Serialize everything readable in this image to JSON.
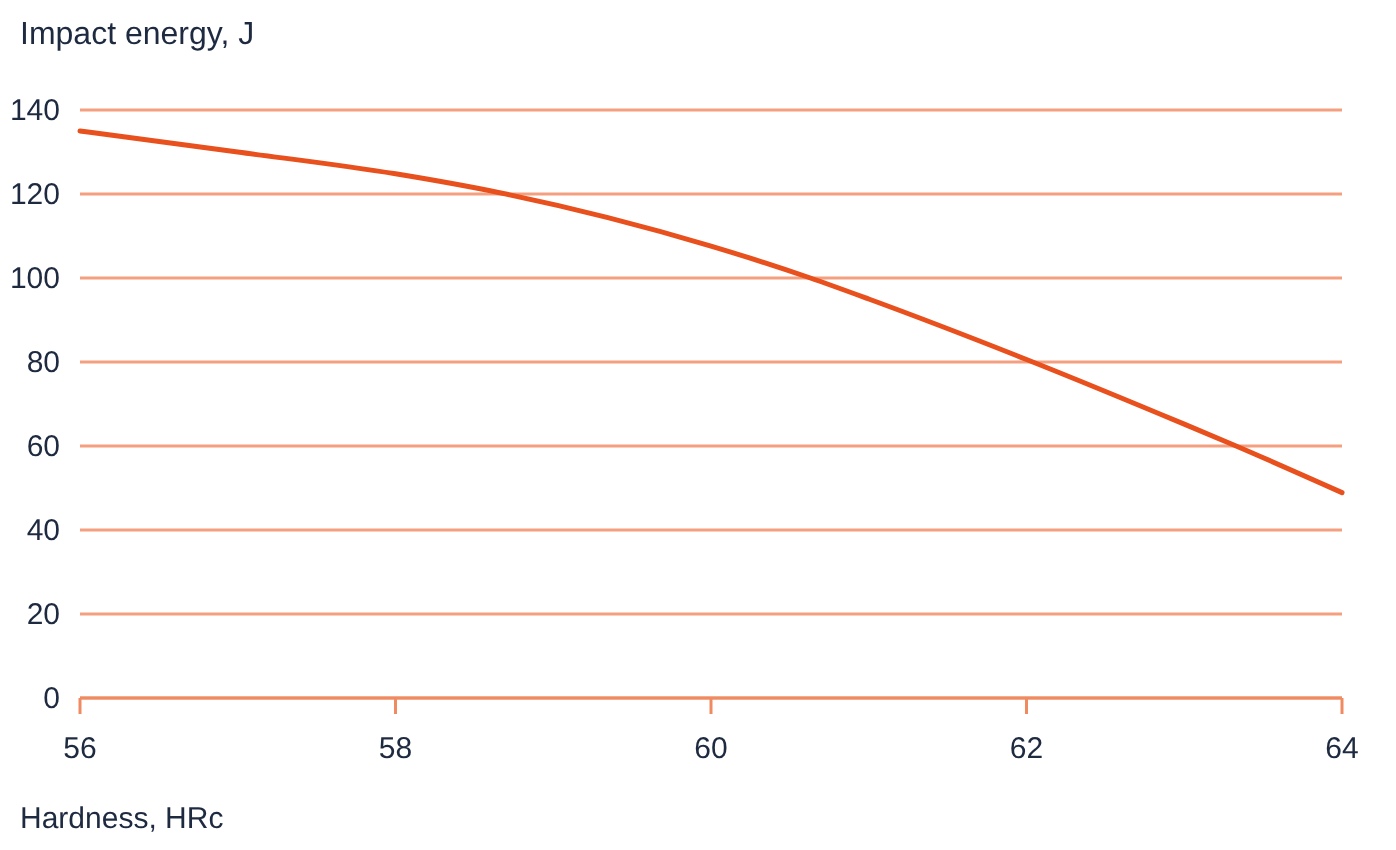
{
  "chart_data": {
    "type": "line",
    "ylabel": "Impact energy, J",
    "xlabel": "Hardness, HRc",
    "x": [
      56,
      57,
      58,
      58.66,
      60,
      60.63,
      61,
      62,
      63,
      63.31,
      64
    ],
    "series": [
      {
        "color": "#e8501e",
        "values": [
          135,
          130,
          124.8,
          120.3,
          107.6,
          100,
          95,
          80.6,
          65.2,
          60.3,
          48.9
        ]
      }
    ],
    "xlim": [
      56,
      64
    ],
    "xticks": [
      56,
      58,
      60,
      62,
      64
    ],
    "ylim": [
      0,
      140
    ],
    "yticks": [
      0,
      20,
      40,
      60,
      80,
      100,
      120,
      140
    ],
    "grid": "y",
    "marker": "none",
    "line_style": "solid"
  }
}
